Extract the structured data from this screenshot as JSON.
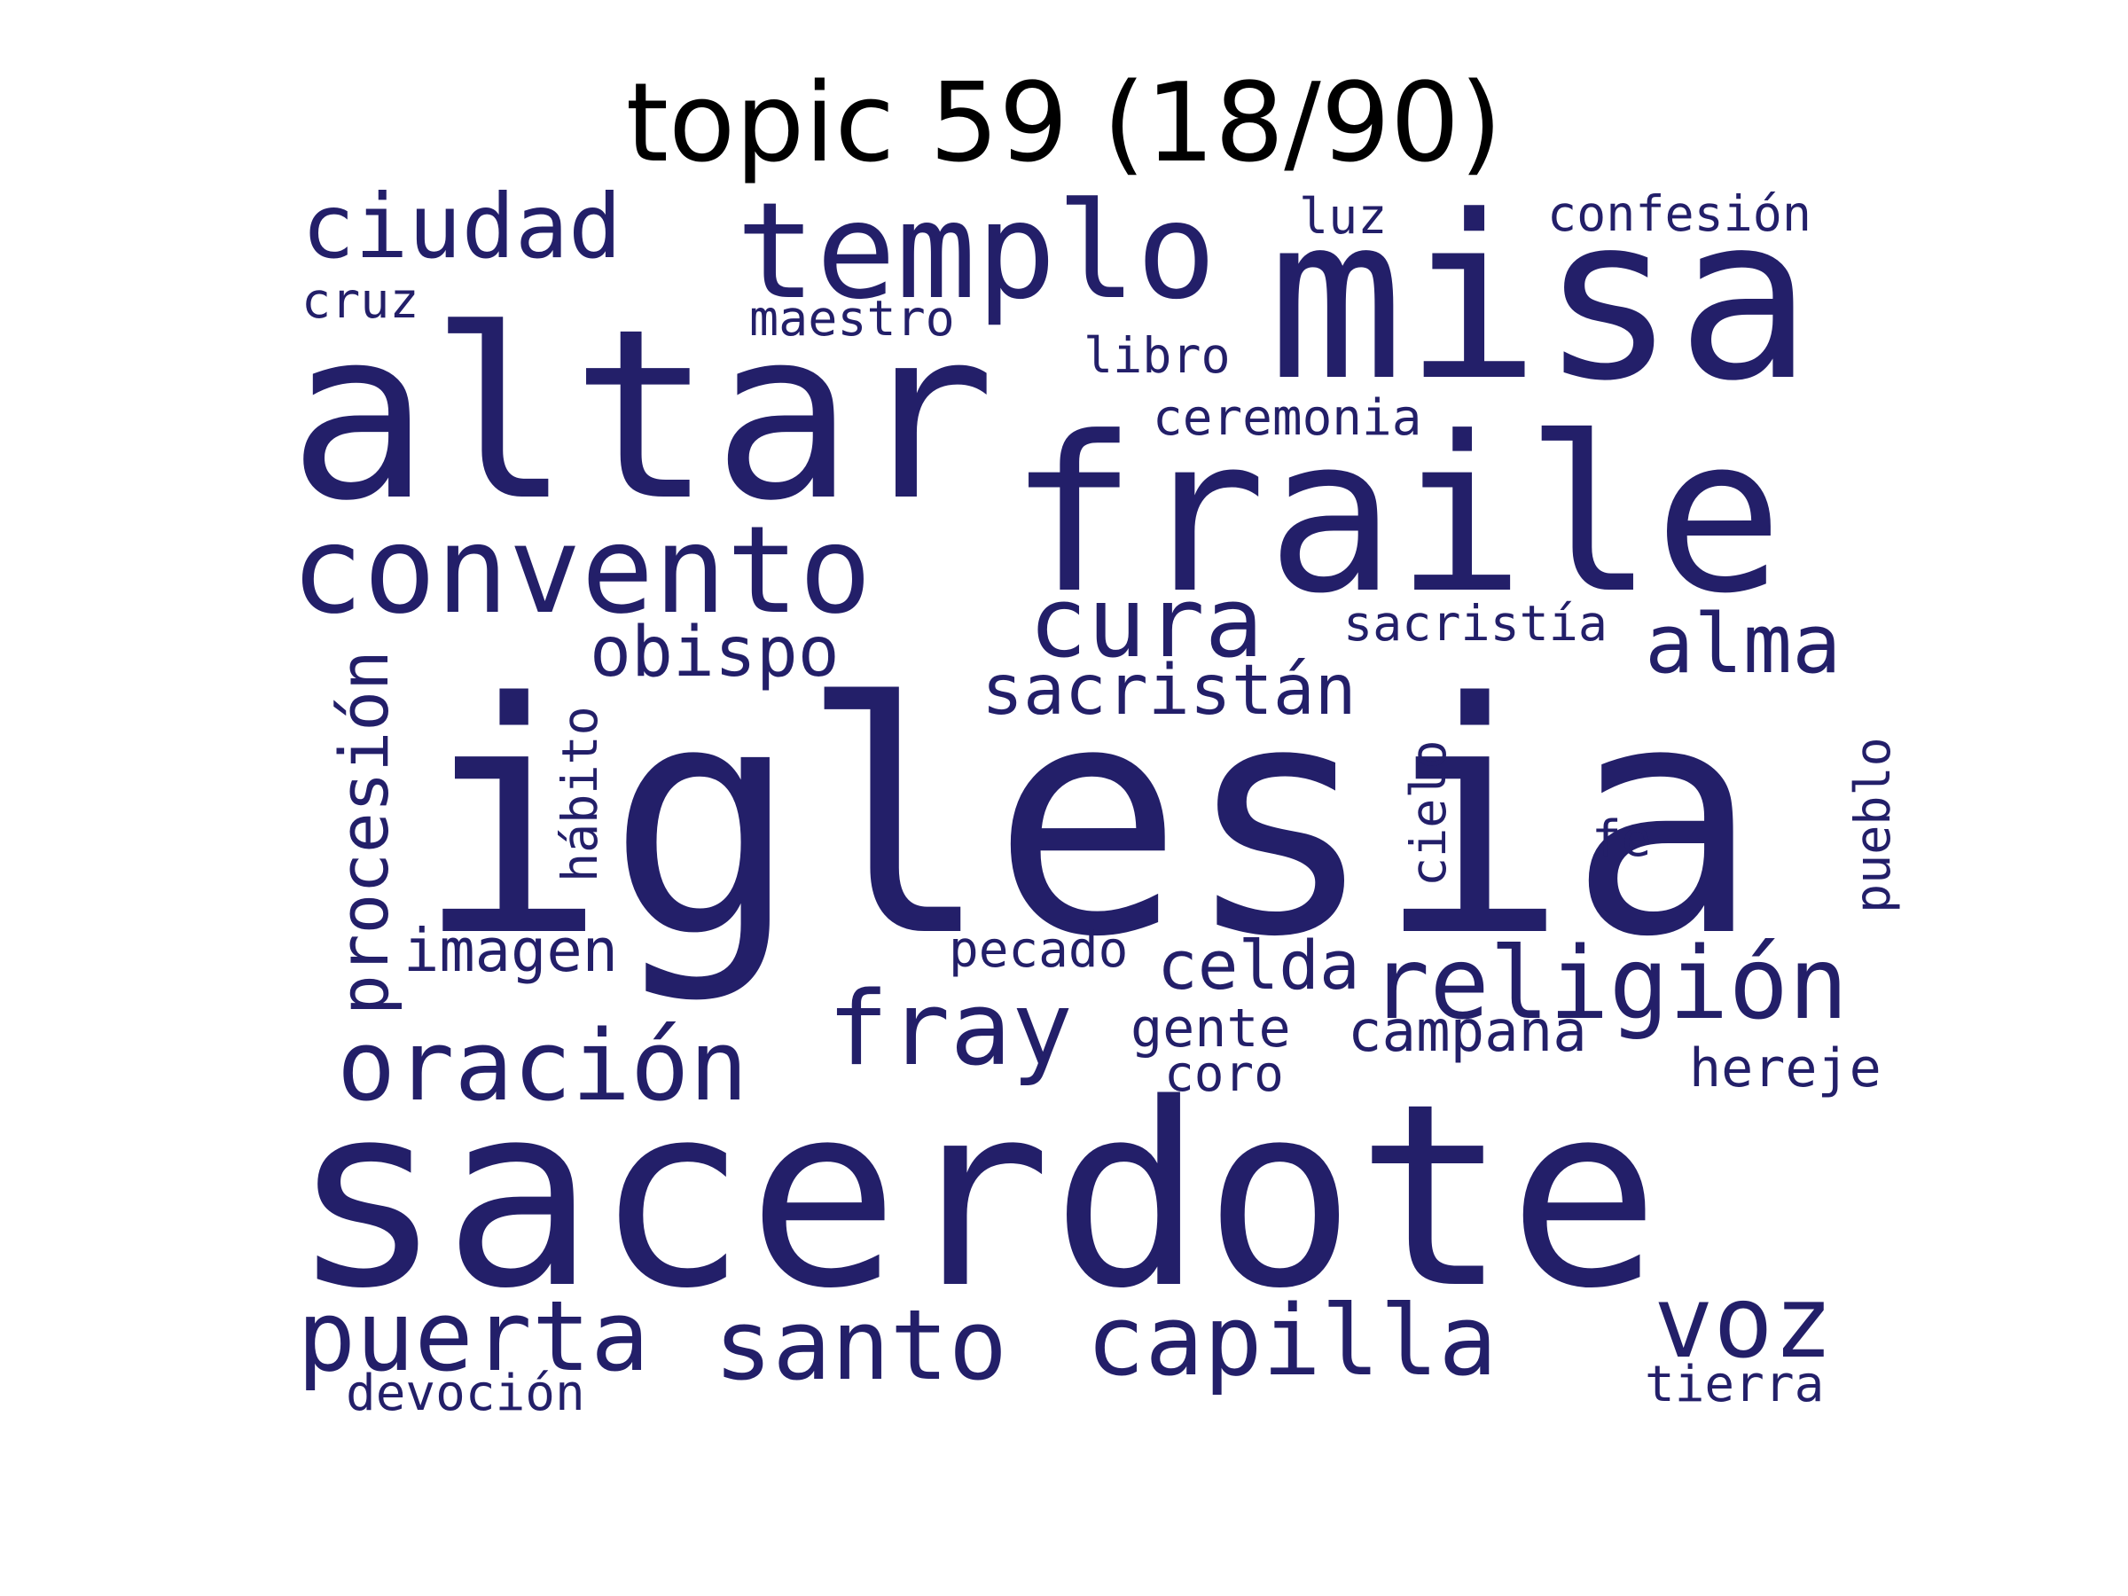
{
  "title": "topic 59 (18/90)",
  "word_color": "#231f69",
  "title_color": "#000000",
  "background": "#ffffff",
  "words": [
    {
      "text": "iglesia",
      "orientation": "horizontal"
    },
    {
      "text": "sacerdote",
      "orientation": "horizontal"
    },
    {
      "text": "altar",
      "orientation": "horizontal"
    },
    {
      "text": "misa",
      "orientation": "horizontal"
    },
    {
      "text": "fraile",
      "orientation": "horizontal"
    },
    {
      "text": "templo",
      "orientation": "horizontal"
    },
    {
      "text": "convento",
      "orientation": "horizontal"
    },
    {
      "text": "ciudad",
      "orientation": "horizontal"
    },
    {
      "text": "luz",
      "orientation": "horizontal"
    },
    {
      "text": "confesión",
      "orientation": "horizontal"
    },
    {
      "text": "cruz",
      "orientation": "horizontal"
    },
    {
      "text": "maestro",
      "orientation": "horizontal"
    },
    {
      "text": "libro",
      "orientation": "horizontal"
    },
    {
      "text": "ceremonia",
      "orientation": "horizontal"
    },
    {
      "text": "cura",
      "orientation": "horizontal"
    },
    {
      "text": "sacristía",
      "orientation": "horizontal"
    },
    {
      "text": "alma",
      "orientation": "horizontal"
    },
    {
      "text": "obispo",
      "orientation": "horizontal"
    },
    {
      "text": "sacristán",
      "orientation": "horizontal"
    },
    {
      "text": "procesión",
      "orientation": "vertical"
    },
    {
      "text": "hábito",
      "orientation": "vertical"
    },
    {
      "text": "cielo",
      "orientation": "vertical"
    },
    {
      "text": "pueblo",
      "orientation": "vertical"
    },
    {
      "text": "fe",
      "orientation": "horizontal"
    },
    {
      "text": "imagen",
      "orientation": "horizontal"
    },
    {
      "text": "pecado",
      "orientation": "horizontal"
    },
    {
      "text": "celda",
      "orientation": "horizontal"
    },
    {
      "text": "religión",
      "orientation": "horizontal"
    },
    {
      "text": "fray",
      "orientation": "horizontal"
    },
    {
      "text": "oración",
      "orientation": "horizontal"
    },
    {
      "text": "gente",
      "orientation": "horizontal"
    },
    {
      "text": "campana",
      "orientation": "horizontal"
    },
    {
      "text": "coro",
      "orientation": "horizontal"
    },
    {
      "text": "hereje",
      "orientation": "horizontal"
    },
    {
      "text": "puerta",
      "orientation": "horizontal"
    },
    {
      "text": "santo",
      "orientation": "horizontal"
    },
    {
      "text": "capilla",
      "orientation": "horizontal"
    },
    {
      "text": "voz",
      "orientation": "horizontal"
    },
    {
      "text": "devoción",
      "orientation": "horizontal"
    },
    {
      "text": "tierra",
      "orientation": "horizontal"
    }
  ]
}
